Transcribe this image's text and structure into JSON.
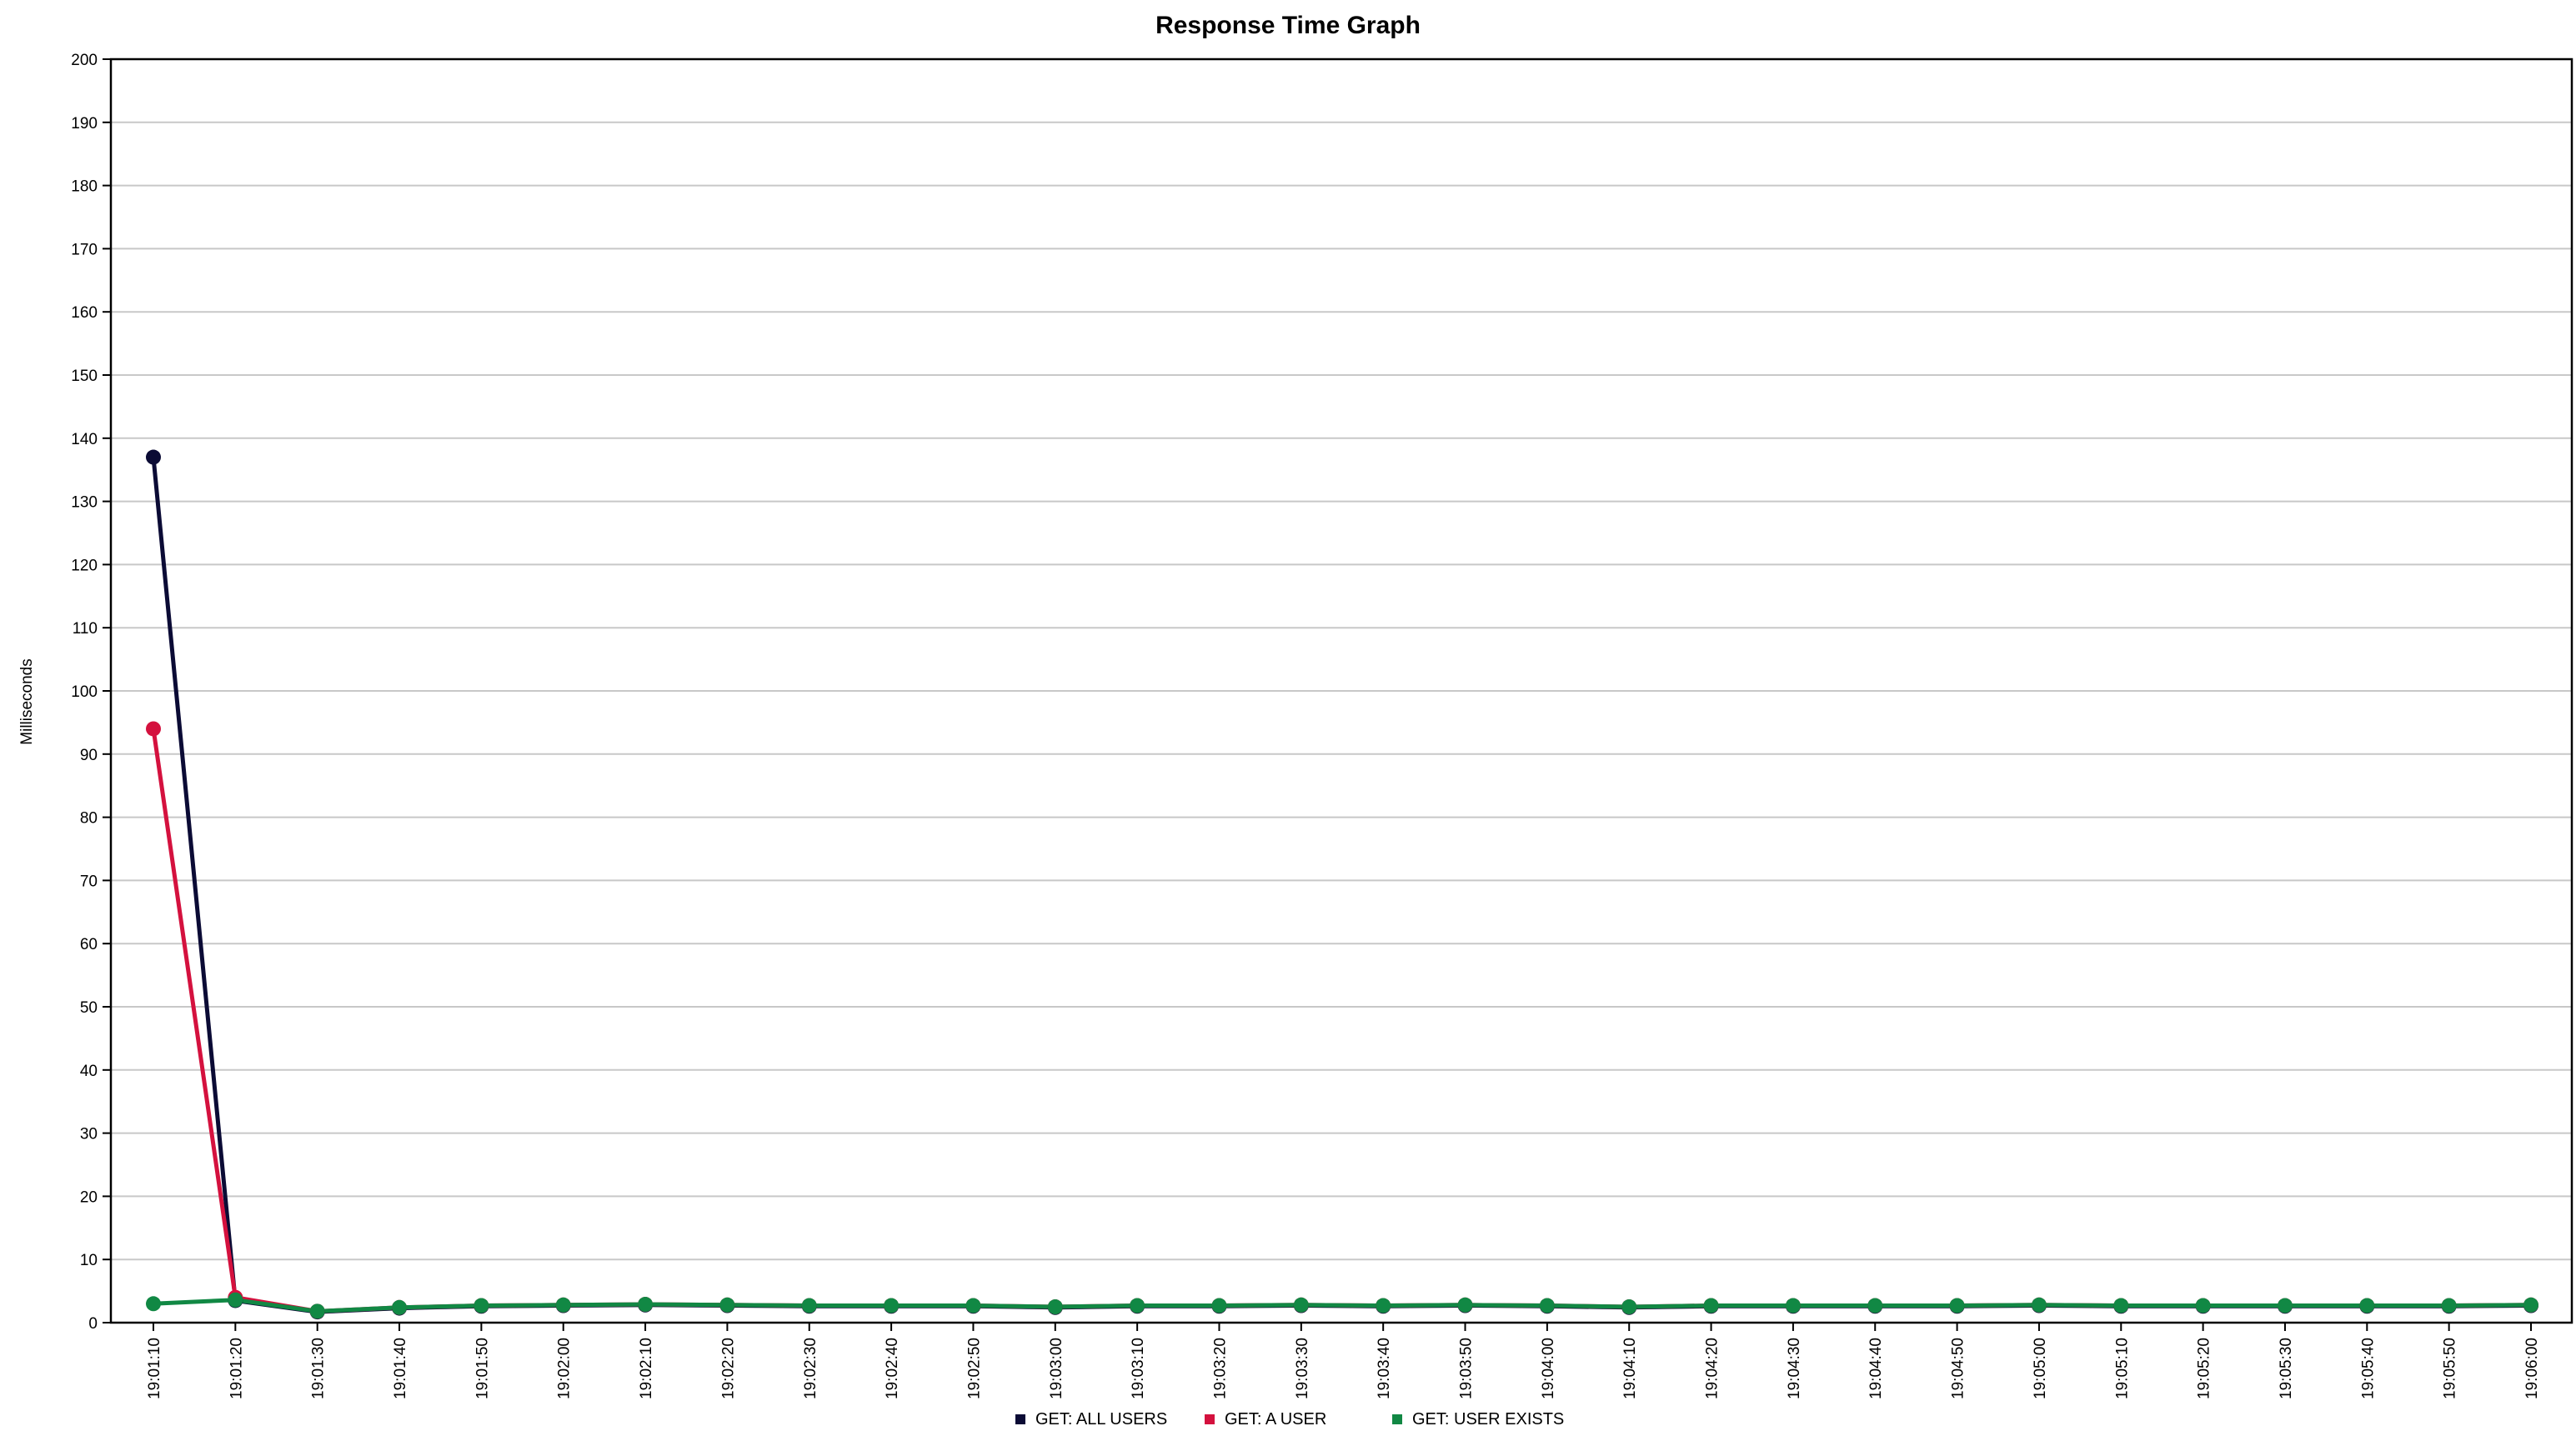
{
  "chart_data": {
    "type": "line",
    "title": "Response Time Graph",
    "xlabel": "",
    "ylabel": "Milliseconds",
    "ylim": [
      0,
      200
    ],
    "y_ticks": [
      0,
      10,
      20,
      30,
      40,
      50,
      60,
      70,
      80,
      90,
      100,
      110,
      120,
      130,
      140,
      150,
      160,
      170,
      180,
      190,
      200
    ],
    "grid": true,
    "legend_position": "bottom",
    "x": [
      "19:01:10",
      "19:01:20",
      "19:01:30",
      "19:01:40",
      "19:01:50",
      "19:02:00",
      "19:02:10",
      "19:02:20",
      "19:02:30",
      "19:02:40",
      "19:02:50",
      "19:03:00",
      "19:03:10",
      "19:03:20",
      "19:03:30",
      "19:03:40",
      "19:03:50",
      "19:04:00",
      "19:04:10",
      "19:04:20",
      "19:04:30",
      "19:04:40",
      "19:04:50",
      "19:05:00",
      "19:05:10",
      "19:05:20",
      "19:05:30",
      "19:05:40",
      "19:05:50",
      "19:06:00"
    ],
    "series": [
      {
        "name": "GET: ALL USERS",
        "color": "#0b0b35",
        "values": [
          137,
          3.5,
          1.7,
          2.3,
          2.6,
          2.7,
          2.8,
          2.7,
          2.6,
          2.6,
          2.6,
          2.4,
          2.6,
          2.6,
          2.7,
          2.6,
          2.7,
          2.6,
          2.4,
          2.6,
          2.6,
          2.6,
          2.6,
          2.7,
          2.6,
          2.6,
          2.6,
          2.6,
          2.6,
          2.7
        ]
      },
      {
        "name": "GET: A USER",
        "color": "#d4113e",
        "values": [
          94,
          4,
          1.8,
          2.4,
          2.7,
          2.8,
          2.9,
          2.8,
          2.7,
          2.7,
          2.7,
          2.5,
          2.7,
          2.7,
          2.8,
          2.7,
          2.8,
          2.7,
          2.5,
          2.7,
          2.7,
          2.7,
          2.7,
          2.8,
          2.7,
          2.7,
          2.7,
          2.7,
          2.7,
          2.8
        ]
      },
      {
        "name": "GET: USER EXISTS",
        "color": "#118844",
        "values": [
          3,
          3.6,
          1.8,
          2.4,
          2.7,
          2.8,
          2.9,
          2.8,
          2.7,
          2.7,
          2.7,
          2.5,
          2.7,
          2.7,
          2.8,
          2.7,
          2.8,
          2.7,
          2.5,
          2.7,
          2.7,
          2.7,
          2.7,
          2.8,
          2.7,
          2.7,
          2.7,
          2.7,
          2.7,
          2.8
        ]
      }
    ]
  }
}
